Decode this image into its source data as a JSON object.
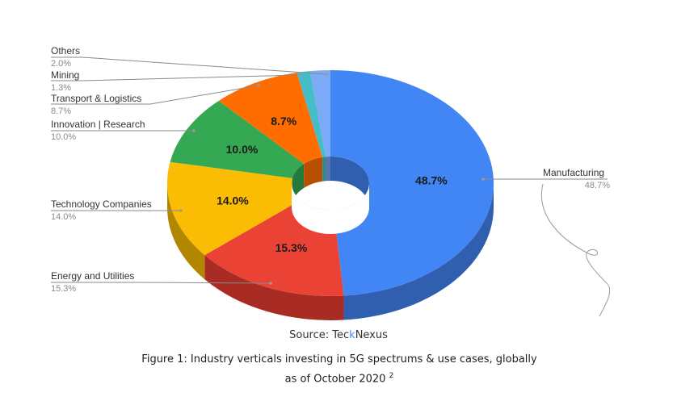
{
  "chart_data": {
    "type": "pie",
    "style": "3d-donut",
    "legend": "outside labels with leader lines",
    "slices": [
      {
        "name": "Manufacturing",
        "value": 48.7,
        "label": "48.7%",
        "color": "#4285f4",
        "side_color": "#2f5fae"
      },
      {
        "name": "Energy and Utilities",
        "value": 15.3,
        "label": "15.3%",
        "color": "#ea4335",
        "side_color": "#a82c24"
      },
      {
        "name": "Technology Companies",
        "value": 14.0,
        "label": "14.0%",
        "color": "#fbbc04",
        "side_color": "#b38600"
      },
      {
        "name": "Innovation | Research",
        "value": 10.0,
        "label": "10.0%",
        "color": "#34a853",
        "side_color": "#237a3b"
      },
      {
        "name": "Transport & Logistics",
        "value": 8.7,
        "label": "8.7%",
        "color": "#ff6d01",
        "side_color": "#b84f00"
      },
      {
        "name": "Mining",
        "value": 1.3,
        "label": "1.3%",
        "color": "#46bdc6",
        "side_color": "#2e8a91"
      },
      {
        "name": "Others",
        "value": 2.0,
        "label": "2.0%",
        "color": "#7baaf7",
        "side_color": "#5677ad"
      }
    ]
  },
  "source": {
    "prefix": "Source: Tec",
    "accent": "k",
    "suffix": "Nexus"
  },
  "caption": {
    "line1": "Figure 1: Industry verticals investing in 5G spectrums & use cases, globally",
    "line2": "as of October 2020",
    "superscript": "2"
  }
}
